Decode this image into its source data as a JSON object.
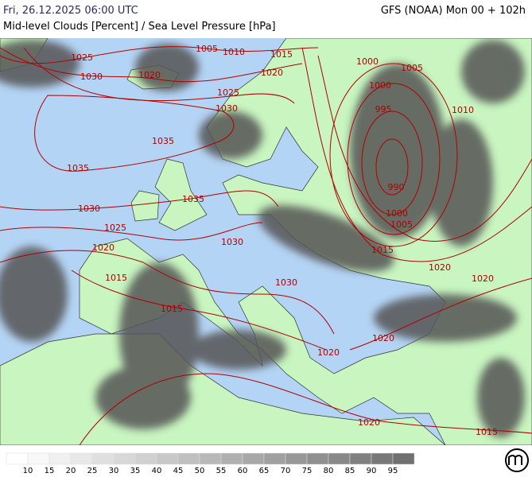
{
  "header": {
    "datetime": "Fri, 26.12.2025 06:00 UTC",
    "title": "Mid-level Clouds [Percent] / Sea Level Pressure [hPa]",
    "model": "GFS (NOAA) Mon 00 + 102h"
  },
  "isobar_labels": [
    1025,
    1030,
    1020,
    1005,
    1010,
    1015,
    1020,
    1025,
    1030,
    1035,
    1035,
    1035,
    1030,
    1025,
    1020,
    1015,
    1015,
    1030,
    1030,
    1020,
    1020,
    1020,
    1020,
    1015,
    1020,
    995,
    990,
    1000,
    1005,
    1015,
    1000,
    1000,
    1005,
    1010
  ],
  "legend": {
    "labels": [
      10,
      15,
      20,
      25,
      30,
      35,
      40,
      45,
      50,
      55,
      60,
      65,
      70,
      75,
      80,
      85,
      90,
      95
    ],
    "colors": [
      "#ffffff",
      "#f8f8f8",
      "#f0f0f0",
      "#e8e8e8",
      "#e0e0e0",
      "#d8d8d8",
      "#d0d0d0",
      "#c8c8c8",
      "#c0c0c0",
      "#b8b8b8",
      "#b0b0b0",
      "#a8a8a8",
      "#a0a0a0",
      "#989898",
      "#909090",
      "#888888",
      "#808080",
      "#787878",
      "#707070"
    ]
  }
}
